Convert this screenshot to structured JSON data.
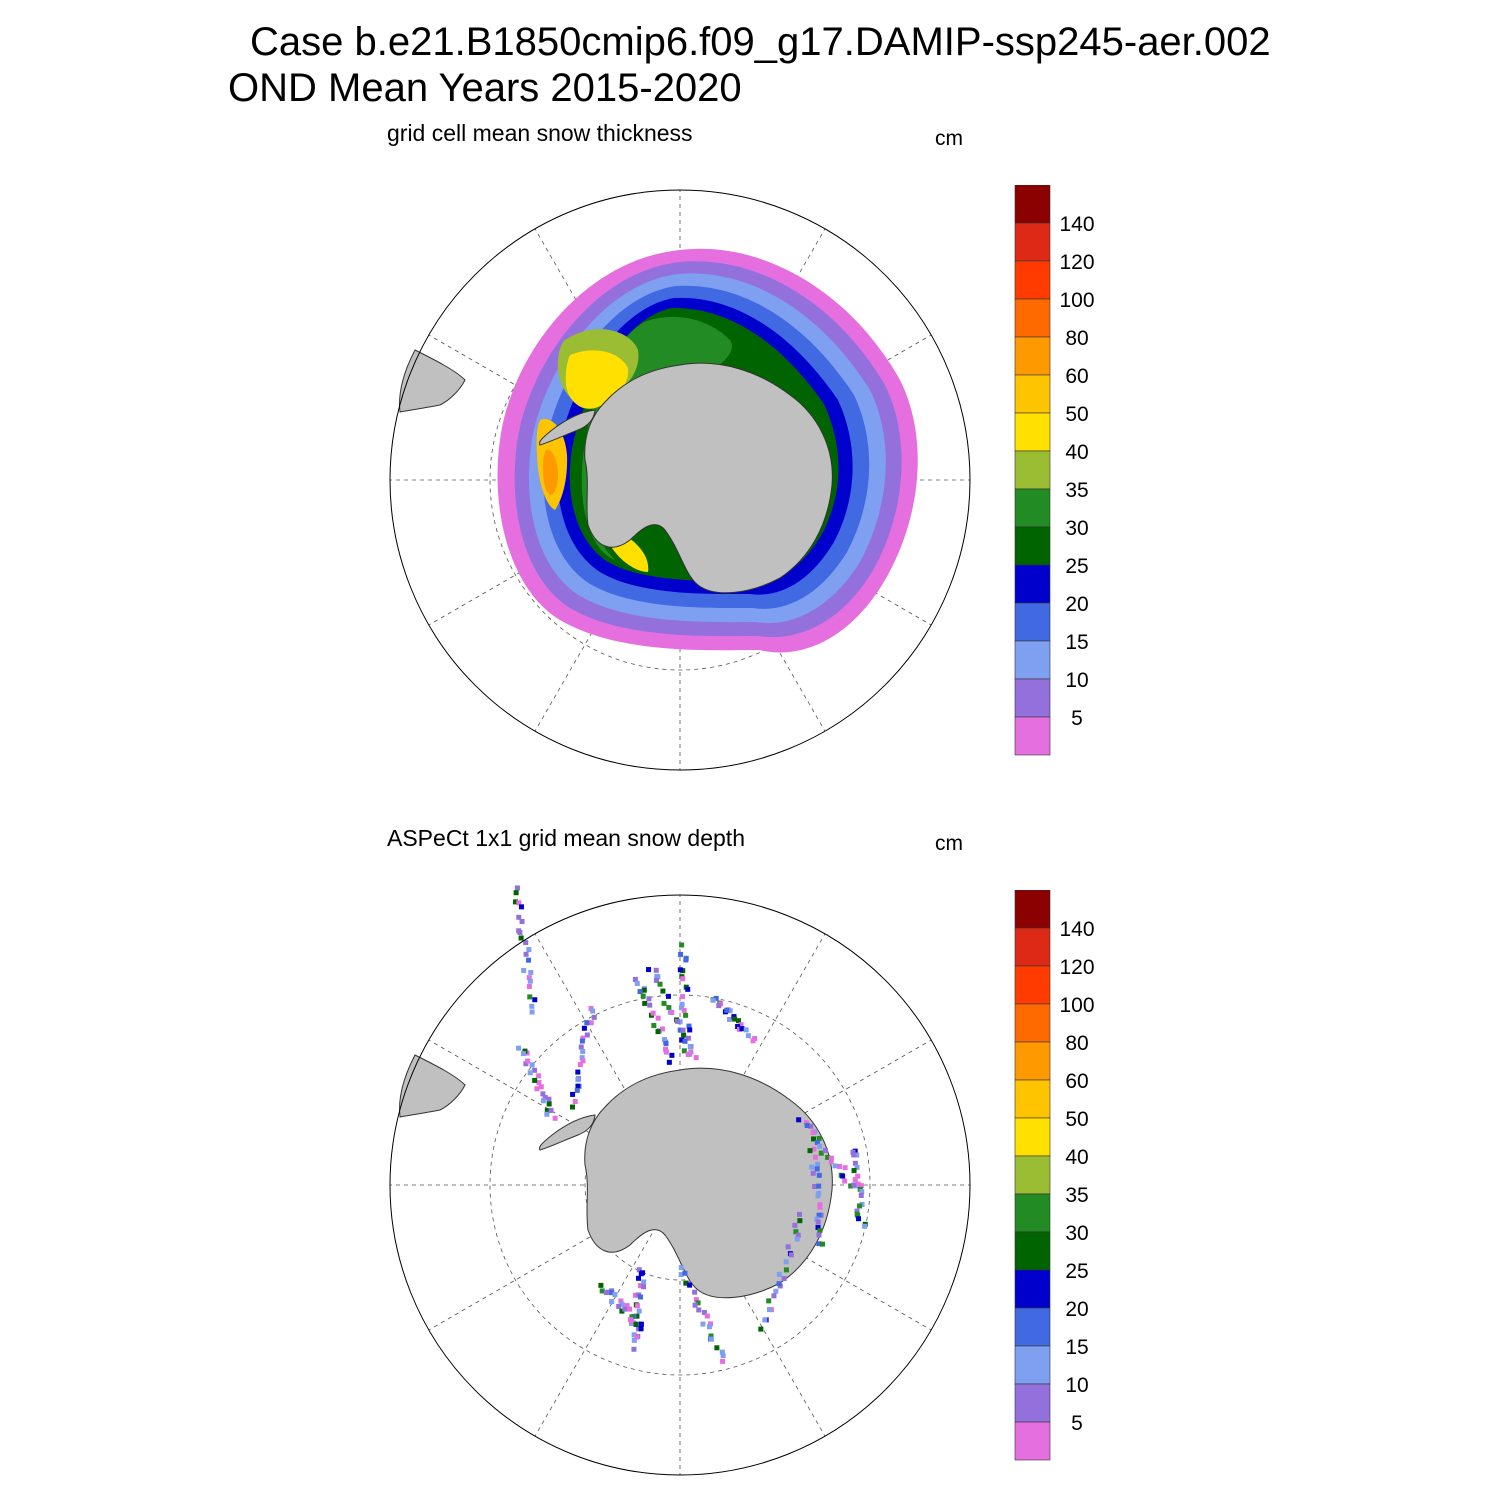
{
  "title": {
    "line1": "Case b.e21.B1850cmip6.f09_g17.DAMIP-ssp245-aer.002",
    "line2": "OND Mean   Years 2015-2020"
  },
  "panels": [
    {
      "id": "model",
      "subtitle": "grid cell mean snow thickness",
      "units": "cm"
    },
    {
      "id": "obs",
      "subtitle": "ASPeCt 1x1 grid mean snow depth",
      "units": "cm"
    }
  ],
  "colorbar": {
    "labels": [
      "140",
      "120",
      "100",
      "80",
      "60",
      "50",
      "40",
      "35",
      "30",
      "25",
      "20",
      "15",
      "10",
      "5"
    ],
    "colors": [
      "#8b0000",
      "#dd2a17",
      "#ff3b00",
      "#ff6a00",
      "#ff9900",
      "#ffc400",
      "#ffe000",
      "#9bbd33",
      "#238b23",
      "#006400",
      "#0000cd",
      "#4169e1",
      "#7f9ff0",
      "#9370db",
      "#e66fe0"
    ]
  },
  "colors": {
    "land": "#c0c0c0",
    "grid": "#555555"
  }
}
